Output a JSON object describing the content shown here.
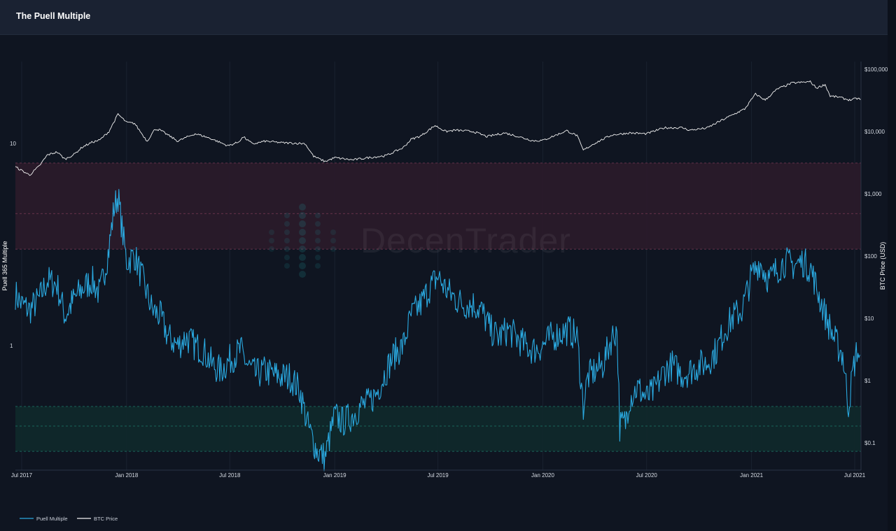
{
  "header": {
    "title": "The Puell Multiple"
  },
  "watermark": {
    "text": "DecenTrader"
  },
  "colors": {
    "puell_line": "#2aa9e0",
    "btc_line": "#f2f2f2",
    "sell_band": "#2a1a2a",
    "buy_band": "#10282b",
    "background": "#0f1521"
  },
  "chart_data": {
    "type": "line",
    "x_ticks": [
      "Jul 2017",
      "Jan 2018",
      "Jul 2018",
      "Jan 2019",
      "Jul 2019",
      "Jan 2020",
      "Jul 2020",
      "Jan 2021",
      "Jul 2021"
    ],
    "xlim": [
      "2017-06-20",
      "2021-07-12"
    ],
    "left_axis": {
      "label": "Puell 365 Multiple",
      "scale": "log",
      "ticks": [
        "10",
        "1"
      ]
    },
    "right_axis": {
      "label": "BTC Price (USD)",
      "scale": "log",
      "ticks": [
        "$100,000",
        "$10,000",
        "$1,000",
        "$100",
        "$10",
        "$1",
        "$0.1"
      ]
    },
    "bands": [
      {
        "name": "sell-zone",
        "axis": "left",
        "range": [
          3.0,
          8.0
        ],
        "midline": 4.5
      },
      {
        "name": "buy-zone",
        "axis": "left",
        "range": [
          0.3,
          0.5
        ],
        "midline": 0.4
      }
    ],
    "series": [
      {
        "name": "Puell Multiple",
        "axis": "left",
        "points": [
          [
            "2017-06-20",
            1.8
          ],
          [
            "2017-07-01",
            1.6
          ],
          [
            "2017-07-15",
            1.5
          ],
          [
            "2017-08-01",
            1.7
          ],
          [
            "2017-08-15",
            2.1
          ],
          [
            "2017-09-01",
            2.0
          ],
          [
            "2017-09-15",
            1.4
          ],
          [
            "2017-10-01",
            1.7
          ],
          [
            "2017-10-15",
            1.9
          ],
          [
            "2017-11-01",
            2.1
          ],
          [
            "2017-11-15",
            1.8
          ],
          [
            "2017-12-01",
            3.0
          ],
          [
            "2017-12-10",
            4.8
          ],
          [
            "2017-12-17",
            5.5
          ],
          [
            "2017-12-24",
            3.8
          ],
          [
            "2018-01-01",
            2.6
          ],
          [
            "2018-01-15",
            2.8
          ],
          [
            "2018-02-01",
            2.0
          ],
          [
            "2018-02-15",
            1.5
          ],
          [
            "2018-03-01",
            1.4
          ],
          [
            "2018-03-15",
            1.1
          ],
          [
            "2018-04-01",
            1.0
          ],
          [
            "2018-04-15",
            1.1
          ],
          [
            "2018-05-01",
            1.0
          ],
          [
            "2018-05-15",
            0.95
          ],
          [
            "2018-06-01",
            0.8
          ],
          [
            "2018-06-15",
            0.75
          ],
          [
            "2018-07-01",
            0.85
          ],
          [
            "2018-07-20",
            0.95
          ],
          [
            "2018-08-01",
            0.8
          ],
          [
            "2018-08-15",
            0.72
          ],
          [
            "2018-09-01",
            0.75
          ],
          [
            "2018-09-15",
            0.72
          ],
          [
            "2018-10-01",
            0.7
          ],
          [
            "2018-10-15",
            0.7
          ],
          [
            "2018-11-01",
            0.6
          ],
          [
            "2018-11-15",
            0.4
          ],
          [
            "2018-12-01",
            0.3
          ],
          [
            "2018-12-15",
            0.28
          ],
          [
            "2019-01-01",
            0.45
          ],
          [
            "2019-01-15",
            0.42
          ],
          [
            "2019-02-01",
            0.45
          ],
          [
            "2019-02-15",
            0.5
          ],
          [
            "2019-03-01",
            0.52
          ],
          [
            "2019-03-15",
            0.58
          ],
          [
            "2019-04-01",
            0.75
          ],
          [
            "2019-04-15",
            0.9
          ],
          [
            "2019-05-01",
            1.0
          ],
          [
            "2019-05-15",
            1.4
          ],
          [
            "2019-06-01",
            1.6
          ],
          [
            "2019-06-15",
            1.9
          ],
          [
            "2019-07-01",
            2.2
          ],
          [
            "2019-07-15",
            1.9
          ],
          [
            "2019-08-01",
            1.7
          ],
          [
            "2019-08-15",
            1.6
          ],
          [
            "2019-09-01",
            1.6
          ],
          [
            "2019-09-15",
            1.5
          ],
          [
            "2019-10-01",
            1.2
          ],
          [
            "2019-10-15",
            1.1
          ],
          [
            "2019-11-01",
            1.2
          ],
          [
            "2019-11-15",
            1.1
          ],
          [
            "2019-12-01",
            1.0
          ],
          [
            "2019-12-15",
            0.95
          ],
          [
            "2020-01-01",
            1.0
          ],
          [
            "2020-01-15",
            1.1
          ],
          [
            "2020-02-01",
            1.15
          ],
          [
            "2020-02-15",
            1.2
          ],
          [
            "2020-03-01",
            1.1
          ],
          [
            "2020-03-12",
            0.5
          ],
          [
            "2020-03-20",
            0.7
          ],
          [
            "2020-04-01",
            0.75
          ],
          [
            "2020-04-15",
            0.8
          ],
          [
            "2020-05-01",
            1.1
          ],
          [
            "2020-05-10",
            1.2
          ],
          [
            "2020-05-15",
            0.4
          ],
          [
            "2020-05-25",
            0.42
          ],
          [
            "2020-06-01",
            0.55
          ],
          [
            "2020-06-15",
            0.62
          ],
          [
            "2020-07-01",
            0.55
          ],
          [
            "2020-07-15",
            0.6
          ],
          [
            "2020-08-01",
            0.75
          ],
          [
            "2020-08-15",
            0.8
          ],
          [
            "2020-09-01",
            0.72
          ],
          [
            "2020-09-15",
            0.75
          ],
          [
            "2020-10-01",
            0.8
          ],
          [
            "2020-10-15",
            0.82
          ],
          [
            "2020-11-01",
            0.95
          ],
          [
            "2020-11-15",
            1.2
          ],
          [
            "2020-12-01",
            1.4
          ],
          [
            "2020-12-15",
            1.5
          ],
          [
            "2021-01-01",
            2.2
          ],
          [
            "2021-01-15",
            2.6
          ],
          [
            "2021-02-01",
            2.1
          ],
          [
            "2021-02-15",
            2.4
          ],
          [
            "2021-03-01",
            2.6
          ],
          [
            "2021-03-15",
            2.5
          ],
          [
            "2021-04-01",
            2.6
          ],
          [
            "2021-04-15",
            2.4
          ],
          [
            "2021-05-01",
            1.7
          ],
          [
            "2021-05-15",
            1.3
          ],
          [
            "2021-05-25",
            1.1
          ],
          [
            "2021-06-01",
            1.0
          ],
          [
            "2021-06-10",
            0.9
          ],
          [
            "2021-06-20",
            0.5
          ],
          [
            "2021-06-28",
            0.75
          ],
          [
            "2021-07-05",
            0.95
          ],
          [
            "2021-07-10",
            0.9
          ]
        ]
      },
      {
        "name": "BTC Price",
        "axis": "right",
        "points": [
          [
            "2017-06-20",
            2700
          ],
          [
            "2017-07-15",
            2000
          ],
          [
            "2017-08-01",
            2800
          ],
          [
            "2017-08-15",
            4200
          ],
          [
            "2017-09-01",
            4700
          ],
          [
            "2017-09-15",
            3600
          ],
          [
            "2017-10-01",
            4300
          ],
          [
            "2017-10-15",
            5600
          ],
          [
            "2017-11-01",
            6700
          ],
          [
            "2017-11-15",
            7300
          ],
          [
            "2017-12-01",
            10000
          ],
          [
            "2017-12-17",
            19000
          ],
          [
            "2018-01-01",
            14000
          ],
          [
            "2018-01-15",
            13500
          ],
          [
            "2018-02-06",
            7000
          ],
          [
            "2018-02-20",
            11000
          ],
          [
            "2018-03-01",
            10500
          ],
          [
            "2018-04-01",
            7000
          ],
          [
            "2018-04-15",
            8000
          ],
          [
            "2018-05-01",
            9200
          ],
          [
            "2018-05-15",
            8500
          ],
          [
            "2018-06-01",
            7500
          ],
          [
            "2018-06-28",
            5900
          ],
          [
            "2018-07-15",
            6700
          ],
          [
            "2018-07-25",
            8200
          ],
          [
            "2018-08-10",
            6300
          ],
          [
            "2018-09-01",
            7000
          ],
          [
            "2018-10-01",
            6600
          ],
          [
            "2018-11-10",
            6400
          ],
          [
            "2018-11-25",
            4000
          ],
          [
            "2018-12-15",
            3300
          ],
          [
            "2019-01-01",
            3800
          ],
          [
            "2019-02-01",
            3500
          ],
          [
            "2019-03-01",
            3800
          ],
          [
            "2019-04-01",
            4100
          ],
          [
            "2019-05-01",
            5500
          ],
          [
            "2019-05-15",
            7500
          ],
          [
            "2019-06-01",
            8500
          ],
          [
            "2019-06-26",
            12500
          ],
          [
            "2019-07-15",
            10000
          ],
          [
            "2019-08-01",
            10500
          ],
          [
            "2019-09-01",
            10000
          ],
          [
            "2019-09-25",
            8300
          ],
          [
            "2019-10-26",
            9500
          ],
          [
            "2019-11-15",
            8500
          ],
          [
            "2019-12-15",
            7100
          ],
          [
            "2020-01-01",
            7200
          ],
          [
            "2020-02-12",
            10300
          ],
          [
            "2020-03-01",
            8600
          ],
          [
            "2020-03-12",
            5000
          ],
          [
            "2020-04-01",
            6500
          ],
          [
            "2020-05-01",
            8800
          ],
          [
            "2020-06-01",
            9500
          ],
          [
            "2020-07-01",
            9200
          ],
          [
            "2020-08-01",
            11500
          ],
          [
            "2020-09-01",
            11500
          ],
          [
            "2020-09-15",
            10500
          ],
          [
            "2020-10-15",
            11400
          ],
          [
            "2020-11-01",
            13800
          ],
          [
            "2020-12-01",
            19000
          ],
          [
            "2020-12-20",
            23000
          ],
          [
            "2021-01-08",
            40000
          ],
          [
            "2021-01-25",
            32000
          ],
          [
            "2021-02-15",
            48000
          ],
          [
            "2021-03-13",
            60000
          ],
          [
            "2021-04-14",
            63000
          ],
          [
            "2021-04-25",
            50000
          ],
          [
            "2021-05-10",
            57000
          ],
          [
            "2021-05-19",
            37000
          ],
          [
            "2021-06-01",
            36000
          ],
          [
            "2021-06-22",
            32000
          ],
          [
            "2021-07-05",
            34000
          ],
          [
            "2021-07-12",
            33000
          ]
        ]
      }
    ],
    "legend": [
      "Puell Multiple",
      "BTC Price"
    ],
    "legend_position": "bottom-left",
    "grid": true
  }
}
